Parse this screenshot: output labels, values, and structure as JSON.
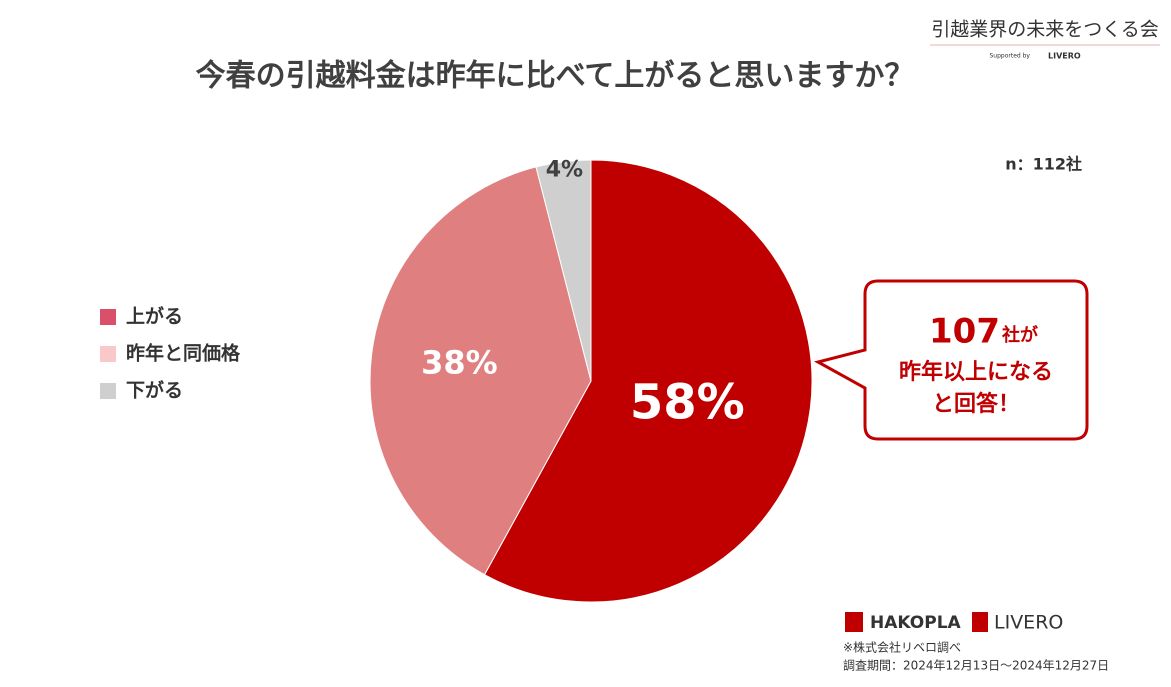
{
  "chart_data": {
    "type": "pie",
    "title": "今春の引越料金は昨年に比べて上がると思いますか？",
    "sample_note": "n：112社",
    "categories": [
      "上がる",
      "昨年と同価格",
      "下がる"
    ],
    "values": [
      58,
      38,
      4
    ],
    "value_labels": [
      "58%",
      "38%",
      "4%"
    ],
    "colors": [
      "#c00000",
      "#e07f7f",
      "#d0cfcf"
    ],
    "legend_colors": [
      "#d9506a",
      "#f8c8cb",
      "#d0cfcf"
    ],
    "callout": {
      "number": "107",
      "unit": "社が",
      "lines": [
        "昨年以上になる",
        "と回答！"
      ]
    },
    "logo": {
      "tagline": "引越業界の未来をつくる会",
      "supported": "Supported by",
      "brand": "LIVERO"
    },
    "footer": {
      "brands": [
        "HAKOPLA",
        "LIVERO"
      ],
      "source": "※株式会社リベロ調べ",
      "period": "調査期間：2024年12月13日～2024年12月27日"
    }
  }
}
